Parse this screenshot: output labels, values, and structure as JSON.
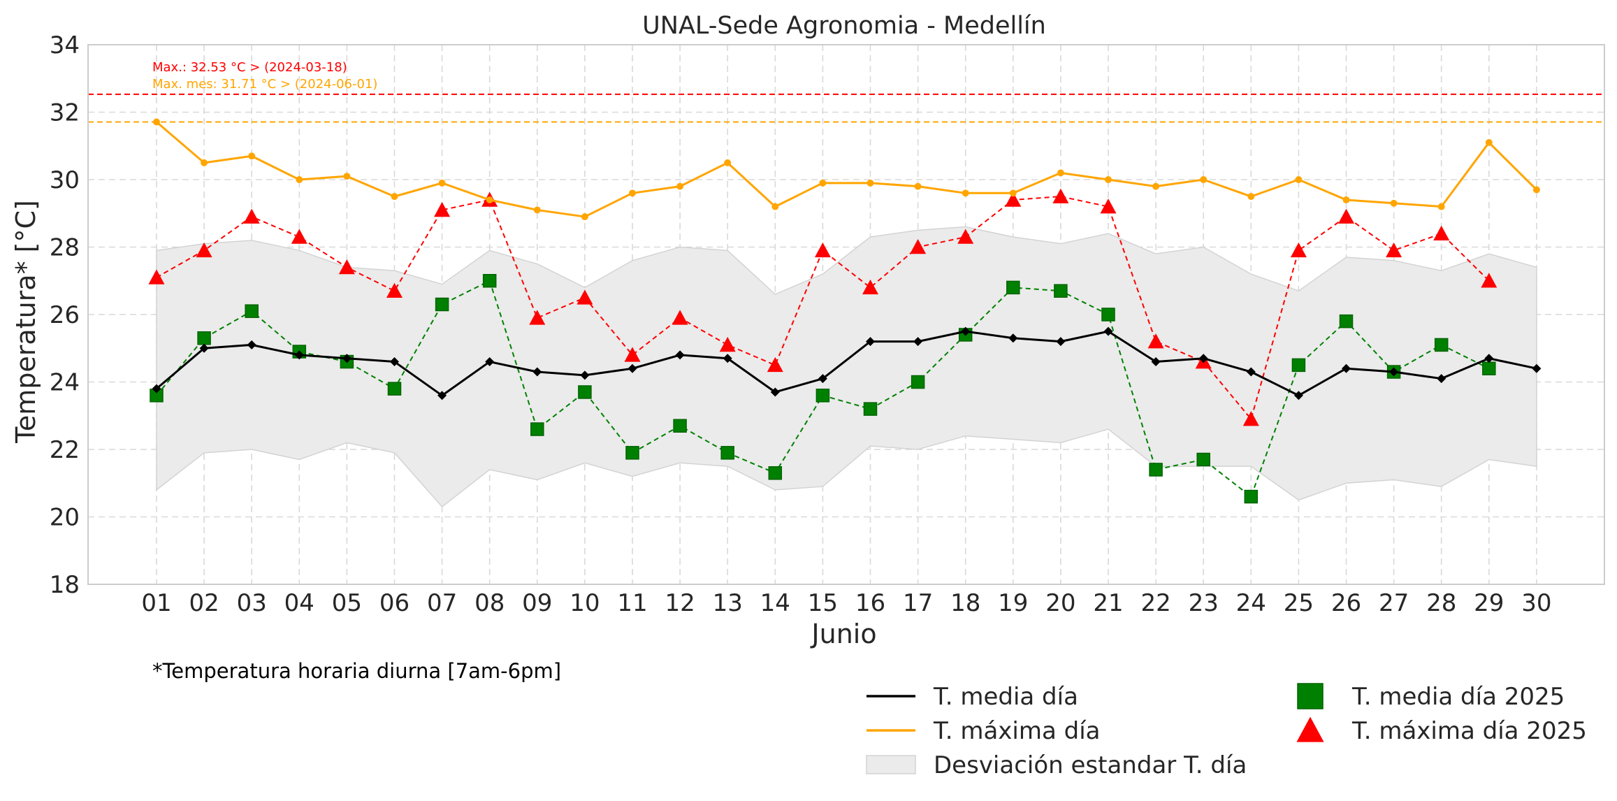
{
  "chart_data": {
    "type": "line",
    "title": "UNAL-Sede Agronomia - Medellín",
    "xlabel": "Junio",
    "ylabel": "Temperatura* [°C]",
    "footnote": "*Temperatura horaria diurna [7am-6pm]",
    "ylim": [
      18,
      34
    ],
    "yticks": [
      "18",
      "20",
      "22",
      "24",
      "26",
      "28",
      "30",
      "32",
      "34"
    ],
    "categories": [
      "01",
      "02",
      "03",
      "04",
      "05",
      "06",
      "07",
      "08",
      "09",
      "10",
      "11",
      "12",
      "13",
      "14",
      "15",
      "16",
      "17",
      "18",
      "19",
      "20",
      "21",
      "22",
      "23",
      "24",
      "25",
      "26",
      "27",
      "28",
      "29",
      "30"
    ],
    "grid": true,
    "legend_position": "bottom-right",
    "reference_lines": [
      {
        "label": "Max.: 32.53 °C  >  (2024-03-18)",
        "value": 32.53,
        "color": "#ff0000"
      },
      {
        "label": "Max. mes: 31.71 °C  >  (2024-06-01)",
        "value": 31.71,
        "color": "#ffa500"
      }
    ],
    "band": {
      "name": "Desviación estandar T. día",
      "color": "#ebebeb",
      "upper": [
        27.9,
        28.1,
        28.2,
        27.9,
        27.4,
        27.3,
        26.9,
        27.9,
        27.5,
        26.8,
        27.6,
        28.0,
        27.9,
        26.6,
        27.2,
        28.3,
        28.5,
        28.6,
        28.3,
        28.1,
        28.4,
        27.8,
        28.0,
        27.2,
        26.7,
        27.7,
        27.6,
        27.3,
        27.8,
        27.4
      ],
      "lower": [
        20.8,
        21.9,
        22.0,
        21.7,
        22.2,
        21.9,
        20.3,
        21.4,
        21.1,
        21.6,
        21.2,
        21.6,
        21.5,
        20.8,
        20.9,
        22.1,
        22.0,
        22.4,
        22.3,
        22.2,
        22.6,
        21.5,
        21.5,
        21.5,
        20.5,
        21.0,
        21.1,
        20.9,
        21.7,
        21.5
      ]
    },
    "series": [
      {
        "name": "T. media día",
        "color": "#000000",
        "style": "solid",
        "marker": "diamond",
        "values": [
          23.8,
          25.0,
          25.1,
          24.8,
          24.7,
          24.6,
          23.6,
          24.6,
          24.3,
          24.2,
          24.4,
          24.8,
          24.7,
          23.7,
          24.1,
          25.2,
          25.2,
          25.5,
          25.3,
          25.2,
          25.5,
          24.6,
          24.7,
          24.3,
          23.6,
          24.4,
          24.3,
          24.1,
          24.7,
          24.4
        ]
      },
      {
        "name": "T. máxima día",
        "color": "#ffa500",
        "style": "solid",
        "marker": "circle",
        "values": [
          31.71,
          30.5,
          30.7,
          30.0,
          30.1,
          29.5,
          29.9,
          29.4,
          29.1,
          28.9,
          29.6,
          29.8,
          30.5,
          29.2,
          29.9,
          29.9,
          29.8,
          29.6,
          29.6,
          30.2,
          30.0,
          29.8,
          30.0,
          29.5,
          30.0,
          29.4,
          29.3,
          29.2,
          31.1,
          29.7
        ]
      },
      {
        "name": "T. media día 2025",
        "color": "#008000",
        "style": "dashed",
        "marker": "square",
        "values": [
          23.6,
          25.3,
          26.1,
          24.9,
          24.6,
          23.8,
          26.3,
          27.0,
          22.6,
          23.7,
          21.9,
          22.7,
          21.9,
          21.3,
          23.6,
          23.2,
          24.0,
          25.4,
          26.8,
          26.7,
          26.0,
          21.4,
          21.7,
          20.6,
          24.5,
          25.8,
          24.3,
          25.1,
          24.4,
          null
        ]
      },
      {
        "name": "T. máxima día 2025",
        "color": "#ff0000",
        "style": "dashed",
        "marker": "triangle",
        "values": [
          27.1,
          27.9,
          28.9,
          28.3,
          27.4,
          26.7,
          29.1,
          29.4,
          25.9,
          26.5,
          24.8,
          25.9,
          25.1,
          24.5,
          27.9,
          26.8,
          28.0,
          28.3,
          29.4,
          29.5,
          29.2,
          25.2,
          24.6,
          22.9,
          27.9,
          28.9,
          27.9,
          28.4,
          27.0,
          null
        ]
      }
    ]
  }
}
